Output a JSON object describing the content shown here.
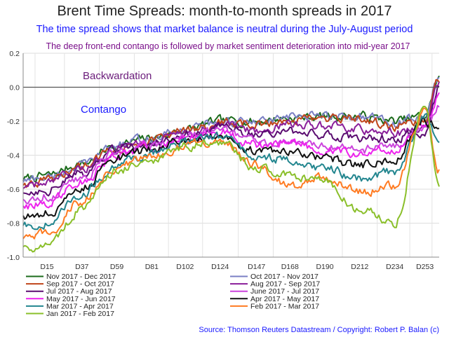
{
  "chart_data": {
    "type": "line",
    "title": "Brent Time Spreads: month-to-month spreads in 2017",
    "subtitle": "The time spread shows that market balance is neutral during the July-August period",
    "subtitle2": "The deep front-end contango is followed by market sentiment deterioration into mid-year 2017",
    "annotations": [
      "Backwardation",
      "Contango"
    ],
    "source": "Source: Thomson Reuters Datastream / Copyright: Robert P. Balan (c)",
    "ylim": [
      -1.0,
      0.2
    ],
    "yticks": [
      "0.2",
      "0.0",
      "-0.2",
      "-0.4",
      "-0.6",
      "-0.8",
      "-1.0"
    ],
    "x_tick_labels": [
      "D15",
      "D37",
      "D59",
      "D81",
      "D102",
      "D124",
      "D147",
      "D168",
      "D190",
      "D212",
      "D234",
      "D253"
    ],
    "x_anchor_days": [
      0,
      15,
      37,
      59,
      81,
      102,
      124,
      147,
      168,
      190,
      212,
      234,
      253,
      262
    ],
    "grid": true,
    "legend_position": "bottom",
    "series": [
      {
        "name": "Nov 2017 - Dec 2017",
        "color": "#1b6b1b",
        "values": [
          -0.54,
          -0.52,
          -0.45,
          -0.34,
          -0.3,
          -0.25,
          -0.2,
          -0.2,
          -0.18,
          -0.17,
          -0.17,
          -0.2,
          -0.17,
          0.05
        ]
      },
      {
        "name": "Oct 2017 - Nov 2017",
        "color": "#7a7fc4",
        "values": [
          -0.55,
          -0.53,
          -0.46,
          -0.34,
          -0.3,
          -0.25,
          -0.2,
          -0.21,
          -0.18,
          -0.17,
          -0.17,
          -0.21,
          -0.18,
          0.06
        ]
      },
      {
        "name": "Sep 2017 - Oct 2017",
        "color": "#c0451a",
        "values": [
          -0.57,
          -0.55,
          -0.47,
          -0.35,
          -0.31,
          -0.26,
          -0.21,
          -0.22,
          -0.19,
          -0.19,
          -0.19,
          -0.23,
          -0.2,
          0.04
        ]
      },
      {
        "name": "Aug 2017 - Sep 2017",
        "color": "#8a1e9a",
        "values": [
          -0.59,
          -0.57,
          -0.49,
          -0.36,
          -0.32,
          -0.27,
          -0.22,
          -0.25,
          -0.22,
          -0.23,
          -0.25,
          -0.27,
          -0.24,
          0.02
        ]
      },
      {
        "name": "Jul 2017 - Aug 2017",
        "color": "#5a0c70",
        "values": [
          -0.62,
          -0.6,
          -0.51,
          -0.37,
          -0.33,
          -0.28,
          -0.23,
          -0.28,
          -0.26,
          -0.28,
          -0.3,
          -0.3,
          -0.26,
          0.0
        ]
      },
      {
        "name": "June 2017 - Jul 2017",
        "color": "#cc44dd",
        "values": [
          -0.66,
          -0.64,
          -0.53,
          -0.38,
          -0.34,
          -0.29,
          -0.25,
          -0.32,
          -0.31,
          -0.34,
          -0.37,
          -0.34,
          -0.25,
          -0.1
        ]
      },
      {
        "name": "May 2017 - Jun 2017",
        "color": "#ee22ee",
        "values": [
          -0.7,
          -0.68,
          -0.55,
          -0.4,
          -0.35,
          -0.3,
          -0.26,
          -0.34,
          -0.33,
          -0.36,
          -0.4,
          -0.36,
          -0.22,
          -0.05
        ]
      },
      {
        "name": "Apr 2017 - May 2017",
        "color": "#111111",
        "values": [
          -0.76,
          -0.74,
          -0.59,
          -0.42,
          -0.37,
          -0.31,
          -0.28,
          -0.38,
          -0.38,
          -0.42,
          -0.46,
          -0.42,
          -0.2,
          -0.24
        ]
      },
      {
        "name": "Mar 2017 - Apr 2017",
        "color": "#23868f",
        "values": [
          -0.82,
          -0.8,
          -0.63,
          -0.45,
          -0.39,
          -0.32,
          -0.29,
          -0.42,
          -0.42,
          -0.48,
          -0.54,
          -0.5,
          -0.18,
          -0.3
        ]
      },
      {
        "name": "Feb 2017 - Mar 2017",
        "color": "#ff7b22",
        "values": [
          -0.9,
          -0.86,
          -0.67,
          -0.47,
          -0.41,
          -0.34,
          -0.31,
          -0.46,
          -0.58,
          -0.52,
          -0.62,
          -0.58,
          -0.14,
          -0.48
        ]
      },
      {
        "name": "Jan 2017 - Feb 2017",
        "color": "#8abf2a",
        "values": [
          -0.95,
          -0.92,
          -0.72,
          -0.49,
          -0.43,
          -0.35,
          -0.32,
          -0.48,
          -0.52,
          -0.56,
          -0.72,
          -0.8,
          -0.1,
          -0.6
        ]
      }
    ],
    "legend_left": [
      "Nov 2017 - Dec 2017",
      "Sep 2017 - Oct 2017",
      "Jul 2017 - Aug 2017",
      "May 2017 - Jun 2017",
      "Mar 2017 - Apr 2017",
      "Jan 2017 - Feb 2017"
    ],
    "legend_right": [
      "Oct 2017 - Nov 2017",
      "Aug 2017 - Sep 2017",
      "June 2017 - Jul 2017",
      "Apr 2017 - May 2017",
      "Feb 2017 - Mar 2017"
    ]
  }
}
